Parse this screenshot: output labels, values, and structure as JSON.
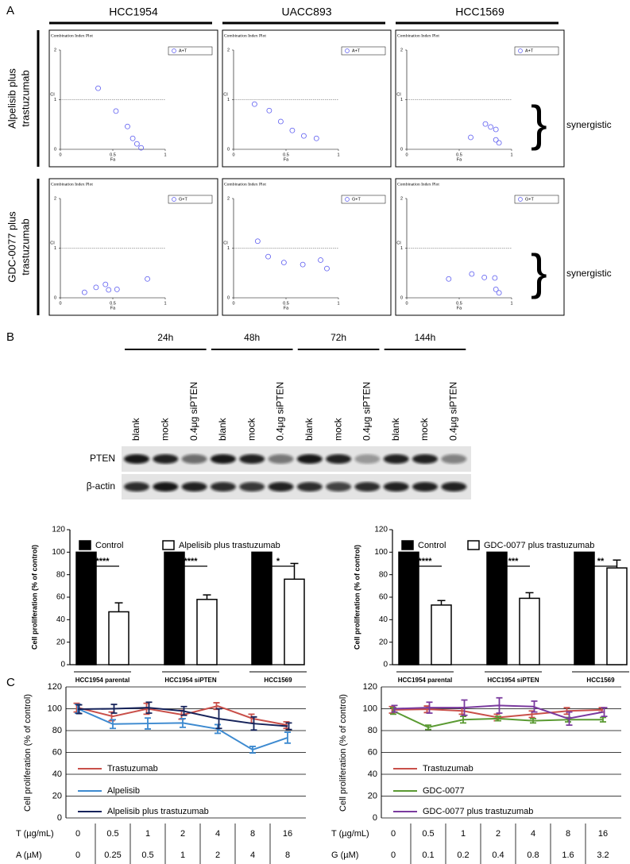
{
  "panel_labels": [
    "A",
    "B",
    "C"
  ],
  "panel_a": {
    "column_headers": [
      "HCC1954",
      "UACC893",
      "HCC1569"
    ],
    "row_labels": [
      [
        "Alpelisib plus",
        "trastuzumab"
      ],
      [
        "GDC-0077 plus",
        "trastuzumab"
      ]
    ],
    "annotations": [
      "synergistic",
      "synergistic"
    ]
  },
  "blot": {
    "times": [
      "24h",
      "48h",
      "72h",
      "144h"
    ],
    "lanes": [
      "blank",
      "mock",
      "0.4μg siPTEN",
      "blank",
      "mock",
      "0.4μg siPTEN",
      "blank",
      "mock",
      "0.4μg siPTEN",
      "blank",
      "mock",
      "0.4μg siPTEN"
    ],
    "proteins": [
      "PTEN",
      "β-actin"
    ]
  },
  "chart_data": [
    {
      "type": "scatter",
      "title": "Combination Index Plot",
      "xlabel": "Fa",
      "ylabel": "CI",
      "legend": "upper right",
      "series": [
        {
          "name": "A+T",
          "color": "#5b5bf0",
          "x": [
            0.36,
            0.53,
            0.64,
            0.69,
            0.73,
            0.77
          ],
          "values": [
            1.23,
            0.77,
            0.46,
            0.22,
            0.11,
            0.03
          ]
        }
      ],
      "xlim": [
        0,
        1
      ],
      "ylim": [
        0,
        2
      ],
      "xticks": [
        0,
        0.5,
        1
      ],
      "yticks": [
        0,
        1,
        2
      ],
      "hline": 1
    },
    {
      "type": "scatter",
      "title": "Combination Index Plot",
      "xlabel": "Fa",
      "ylabel": "CI",
      "legend": "upper right",
      "series": [
        {
          "name": "A+T",
          "color": "#5b5bf0",
          "x": [
            0.2,
            0.34,
            0.45,
            0.56,
            0.67,
            0.79
          ],
          "values": [
            0.91,
            0.78,
            0.56,
            0.38,
            0.27,
            0.22
          ]
        }
      ],
      "xlim": [
        0,
        1
      ],
      "ylim": [
        0,
        2
      ],
      "xticks": [
        0,
        0.5,
        1
      ],
      "yticks": [
        0,
        1,
        2
      ],
      "hline": 1
    },
    {
      "type": "scatter",
      "title": "Combination Index Plot",
      "xlabel": "Fa",
      "ylabel": "CI",
      "legend": "upper right",
      "series": [
        {
          "name": "A+T",
          "color": "#5b5bf0",
          "x": [
            0.61,
            0.75,
            0.8,
            0.85,
            0.85,
            0.88
          ],
          "values": [
            0.24,
            0.51,
            0.45,
            0.4,
            0.19,
            0.13
          ]
        }
      ],
      "xlim": [
        0,
        1
      ],
      "ylim": [
        0,
        2
      ],
      "xticks": [
        0,
        0.5,
        1
      ],
      "yticks": [
        0,
        1,
        2
      ],
      "hline": 1
    },
    {
      "type": "scatter",
      "title": "Combination Index Plot",
      "xlabel": "Fa",
      "ylabel": "CI",
      "legend": "upper right",
      "series": [
        {
          "name": "G+T",
          "color": "#5b5bf0",
          "x": [
            0.23,
            0.34,
            0.43,
            0.46,
            0.54,
            0.83
          ],
          "values": [
            0.11,
            0.21,
            0.27,
            0.16,
            0.17,
            0.38
          ]
        }
      ],
      "xlim": [
        0,
        1
      ],
      "ylim": [
        0,
        2
      ],
      "xticks": [
        0,
        0.5,
        1
      ],
      "yticks": [
        0,
        1,
        2
      ],
      "hline": 1
    },
    {
      "type": "scatter",
      "title": "Combination Index Plot",
      "xlabel": "Fa",
      "ylabel": "CI",
      "legend": "upper right",
      "series": [
        {
          "name": "G+T",
          "color": "#5b5bf0",
          "x": [
            0.23,
            0.33,
            0.48,
            0.66,
            0.83,
            0.89
          ],
          "values": [
            1.14,
            0.83,
            0.71,
            0.67,
            0.76,
            0.59
          ]
        }
      ],
      "xlim": [
        0,
        1
      ],
      "ylim": [
        0,
        2
      ],
      "xticks": [
        0,
        0.5,
        1
      ],
      "yticks": [
        0,
        1,
        2
      ],
      "hline": 1
    },
    {
      "type": "scatter",
      "title": "Combination Index Plot",
      "xlabel": "Fa",
      "ylabel": "CI",
      "legend": "upper right",
      "series": [
        {
          "name": "G+T",
          "color": "#5b5bf0",
          "x": [
            0.4,
            0.62,
            0.74,
            0.84,
            0.85,
            0.88
          ],
          "values": [
            0.38,
            0.48,
            0.41,
            0.4,
            0.17,
            0.1
          ]
        }
      ],
      "xlim": [
        0,
        1
      ],
      "ylim": [
        0,
        2
      ],
      "xticks": [
        0,
        0.5,
        1
      ],
      "yticks": [
        0,
        1,
        2
      ],
      "hline": 1
    },
    {
      "type": "bar",
      "ylabel": "Cell proliferation (% of control)",
      "categories": [
        "HCC1954 parental",
        "HCC1954 siPTEN",
        "HCC1569"
      ],
      "series": [
        {
          "name": "Control",
          "color": "#000000",
          "values": [
            100,
            100,
            100
          ]
        },
        {
          "name": "Alpelisib plus trastuzumab",
          "color": "#ffffff",
          "values": [
            47,
            58,
            76
          ],
          "errors": [
            8,
            4,
            14
          ]
        }
      ],
      "significance": [
        "****",
        "****",
        "*"
      ],
      "ylim": [
        0,
        120
      ],
      "yticks": [
        0,
        20,
        40,
        60,
        80,
        100,
        120
      ],
      "legend": "top"
    },
    {
      "type": "bar",
      "ylabel": "Cell proliferation (% of control)",
      "categories": [
        "HCC1954 parental",
        "HCC1954 siPTEN",
        "HCC1569"
      ],
      "series": [
        {
          "name": "Control",
          "color": "#000000",
          "values": [
            100,
            100,
            100
          ]
        },
        {
          "name": "GDC-0077 plus trastuzumab",
          "color": "#ffffff",
          "values": [
            53,
            59,
            86
          ],
          "errors": [
            4,
            5,
            7
          ]
        }
      ],
      "significance": [
        "****",
        "***",
        "**"
      ],
      "ylim": [
        0,
        120
      ],
      "yticks": [
        0,
        20,
        40,
        60,
        80,
        100,
        120
      ],
      "legend": "top"
    },
    {
      "type": "line",
      "ylabel": "Cell proliferation (% of control)",
      "x_row_names": [
        "T (µg/mL)",
        "A (µM)"
      ],
      "categories": [
        0,
        0.5,
        1,
        2,
        4,
        8,
        16
      ],
      "x2_categories": [
        0,
        0.25,
        0.5,
        1,
        2,
        4,
        8
      ],
      "series": [
        {
          "name": "Trastuzumab",
          "color": "#c9504a",
          "values": [
            101,
            93,
            100,
            94.5,
            102.5,
            91,
            85
          ],
          "errors": [
            4,
            4,
            5,
            4,
            3,
            4,
            3
          ]
        },
        {
          "name": "Alpelisib",
          "color": "#3d8ad0",
          "values": [
            100,
            86,
            86.5,
            87,
            81.5,
            62.5,
            73.5
          ],
          "errors": [
            4,
            4,
            5,
            4,
            4,
            3,
            5
          ]
        },
        {
          "name": "Alpelisib plus trastuzumab",
          "color": "#16235a",
          "values": [
            99.6,
            100,
            101,
            98,
            91,
            86.5,
            84
          ],
          "errors": [
            4,
            4,
            5,
            4,
            9,
            6,
            3
          ]
        }
      ],
      "ylim": [
        0,
        120
      ],
      "yticks": [
        0,
        20,
        40,
        60,
        80,
        100,
        120
      ],
      "grid": true
    },
    {
      "type": "line",
      "ylabel": "Cell proliferation (% of control)",
      "x_row_names": [
        "T (µg/mL)",
        "G (µM)"
      ],
      "categories": [
        0,
        0.5,
        1,
        2,
        4,
        8,
        16
      ],
      "x2_categories": [
        0,
        0.1,
        0.2,
        0.4,
        0.8,
        1.6,
        3.2
      ],
      "series": [
        {
          "name": "Trastuzumab",
          "color": "#c9504a",
          "values": [
            99,
            99.5,
            98,
            92,
            95,
            98,
            99
          ],
          "errors": [
            3,
            3,
            3,
            3,
            3,
            3,
            2
          ]
        },
        {
          "name": "GDC-0077",
          "color": "#5a9a32",
          "values": [
            98,
            83,
            90,
            91,
            89,
            90,
            90
          ],
          "errors": [
            3,
            2,
            3,
            2,
            2,
            2,
            2
          ]
        },
        {
          "name": "GDC-0077 plus trastuzumab",
          "color": "#7a3a9e",
          "values": [
            100,
            101,
            101,
            103,
            102,
            91,
            97
          ],
          "errors": [
            3,
            5,
            7,
            7,
            5,
            6,
            4
          ]
        }
      ],
      "ylim": [
        0,
        120
      ],
      "yticks": [
        0,
        20,
        40,
        60,
        80,
        100,
        120
      ],
      "grid": true
    }
  ]
}
